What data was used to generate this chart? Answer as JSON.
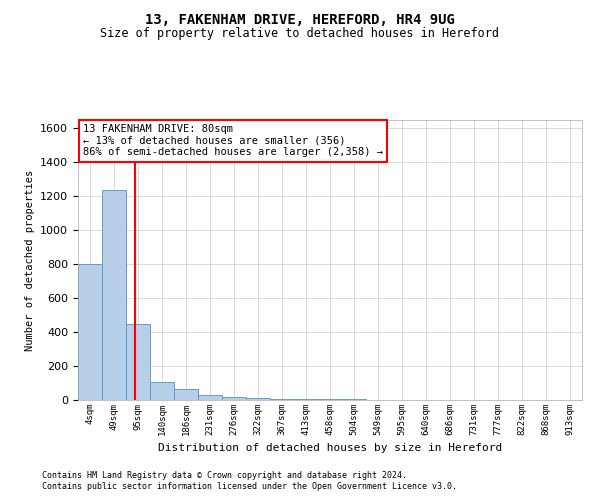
{
  "title1": "13, FAKENHAM DRIVE, HEREFORD, HR4 9UG",
  "title2": "Size of property relative to detached houses in Hereford",
  "xlabel": "Distribution of detached houses by size in Hereford",
  "ylabel": "Number of detached properties",
  "bar_labels": [
    "4sqm",
    "49sqm",
    "95sqm",
    "140sqm",
    "186sqm",
    "231sqm",
    "276sqm",
    "322sqm",
    "367sqm",
    "413sqm",
    "458sqm",
    "504sqm",
    "549sqm",
    "595sqm",
    "640sqm",
    "686sqm",
    "731sqm",
    "777sqm",
    "822sqm",
    "868sqm",
    "913sqm"
  ],
  "bar_values": [
    800,
    1240,
    450,
    105,
    65,
    30,
    20,
    10,
    8,
    5,
    3,
    3,
    2,
    2,
    1,
    0,
    0,
    0,
    0,
    0,
    0
  ],
  "bar_color": "#b8cfe8",
  "bar_edge_color": "#6699cc",
  "ylim": [
    0,
    1650
  ],
  "yticks": [
    0,
    200,
    400,
    600,
    800,
    1000,
    1200,
    1400,
    1600
  ],
  "red_line_x": 1.87,
  "annotation_line1": "13 FAKENHAM DRIVE: 80sqm",
  "annotation_line2": "← 13% of detached houses are smaller (356)",
  "annotation_line3": "86% of semi-detached houses are larger (2,358) →",
  "footnote1": "Contains HM Land Registry data © Crown copyright and database right 2024.",
  "footnote2": "Contains public sector information licensed under the Open Government Licence v3.0.",
  "bg_color": "#ffffff",
  "grid_color": "#cccccc"
}
